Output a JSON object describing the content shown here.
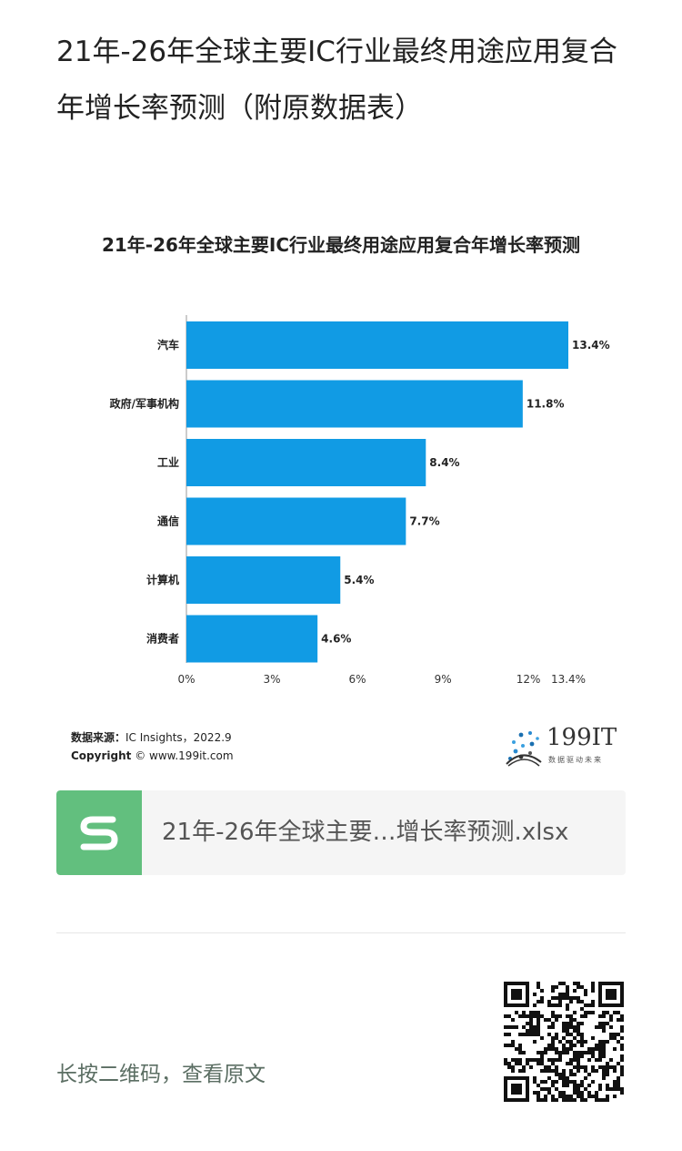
{
  "article": {
    "title": "21年-26年全球主要IC行业最终用途应用复合年增长率预测（附原数据表）"
  },
  "chart_data": {
    "type": "bar",
    "orientation": "horizontal",
    "title": "21年-26年全球主要IC行业最终用途应用复合年增长率预测",
    "categories": [
      "汽车",
      "政府/军事机构",
      "工业",
      "通信",
      "计算机",
      "消费者"
    ],
    "values": [
      13.4,
      11.8,
      8.4,
      7.7,
      5.4,
      4.6
    ],
    "value_labels": [
      "13.4%",
      "11.8%",
      "8.4%",
      "7.7%",
      "5.4%",
      "4.6%"
    ],
    "x_ticks": [
      0,
      3,
      6,
      9,
      12,
      13.4
    ],
    "x_tick_labels": [
      "0%",
      "3%",
      "6%",
      "9%",
      "12%",
      "13.4%"
    ],
    "xlim": [
      0,
      13.4
    ],
    "grid": false,
    "bar_color": "#119be4"
  },
  "source": {
    "label": "数据来源：",
    "text": "IC Insights，2022.9",
    "copyright_label": "Copyright",
    "copyright_text": "© www.199it.com"
  },
  "logo": {
    "name": "199IT",
    "tagline": "数据驱动未来"
  },
  "attachment": {
    "icon": "spreadsheet-s-icon",
    "filename": "21年-26年全球主要…增长率预测.xlsx",
    "icon_color": "#62bf7e"
  },
  "footer": {
    "qr_hint": "长按二维码，查看原文",
    "qr_icon": "qr-code-icon"
  }
}
